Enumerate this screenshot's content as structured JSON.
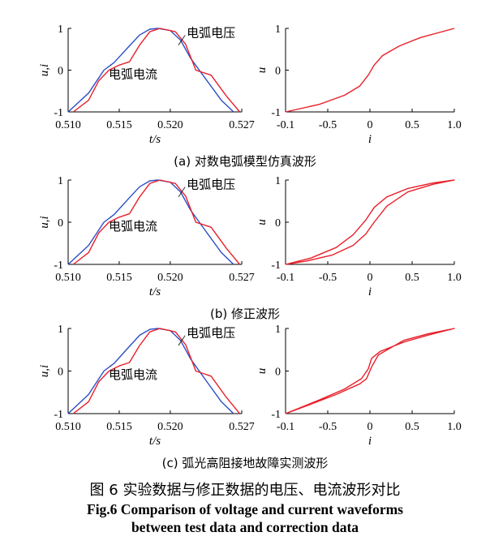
{
  "figure": {
    "caption_cn": "图 6   实验数据与修正数据的电压、电流波形对比",
    "caption_en_line1": "Fig.6    Comparison of voltage and current waveforms",
    "caption_en_line2": "between test data and correction data"
  },
  "colors": {
    "voltage": "#2b4fc7",
    "current": "#e8202a",
    "axis": "#000000"
  },
  "chart_data": [
    {
      "type": "line",
      "panel": "time",
      "row": 0,
      "ylabel": "u,i",
      "xlabel": "t/s",
      "xlim": [
        0.51,
        0.527
      ],
      "ylim": [
        -1,
        1
      ],
      "xticks": [
        "0.510",
        "0.515",
        "0.520",
        "0.527"
      ],
      "yticks": [
        "1",
        "0",
        "-1"
      ],
      "series": [
        {
          "name": "电弧电压",
          "x": [
            0.51,
            0.512,
            0.5135,
            0.5145,
            0.516,
            0.517,
            0.518,
            0.5188,
            0.52,
            0.521,
            0.522,
            0.5235,
            0.525,
            0.5262
          ],
          "y": [
            -1.0,
            -0.55,
            0.0,
            0.18,
            0.58,
            0.84,
            0.98,
            1.0,
            0.95,
            0.72,
            0.28,
            -0.22,
            -0.72,
            -1.0
          ]
        },
        {
          "name": "电弧电流",
          "x": [
            0.5105,
            0.512,
            0.513,
            0.514,
            0.515,
            0.516,
            0.517,
            0.518,
            0.519,
            0.5205,
            0.5215,
            0.5225,
            0.524,
            0.5255,
            0.5268
          ],
          "y": [
            -1.0,
            -0.72,
            -0.25,
            0.0,
            0.12,
            0.2,
            0.6,
            0.92,
            1.0,
            0.92,
            0.62,
            0.0,
            -0.12,
            -0.62,
            -1.0
          ]
        }
      ],
      "annotations": [
        "电弧电压",
        "电弧电流"
      ],
      "subcaption": "(a) 对数电弧模型仿真波形"
    },
    {
      "type": "line",
      "panel": "iu",
      "row": 0,
      "ylabel": "u",
      "xlabel": "i",
      "xlim": [
        -1.0,
        1.0
      ],
      "ylim": [
        -1,
        1
      ],
      "xticks": [
        "-0.1",
        "-0.5",
        "0",
        "0.5",
        "1.0"
      ],
      "yticks": [
        "1",
        "0",
        "-1"
      ],
      "series": [
        {
          "x": [
            -1.0,
            -0.6,
            -0.3,
            -0.12,
            -0.02,
            0.05,
            0.15,
            0.35,
            0.6,
            1.0
          ],
          "y": [
            -1.0,
            -0.82,
            -0.6,
            -0.38,
            -0.12,
            0.12,
            0.35,
            0.58,
            0.78,
            1.0
          ]
        }
      ]
    },
    {
      "type": "line",
      "panel": "time",
      "row": 1,
      "ylabel": "u,i",
      "xlabel": "t/s",
      "xlim": [
        0.51,
        0.527
      ],
      "ylim": [
        -1,
        1
      ],
      "xticks": [
        "0.510",
        "0.515",
        "0.520",
        "0.527"
      ],
      "yticks": [
        "1",
        "0",
        "-1"
      ],
      "series": [
        {
          "name": "电弧电压",
          "x": [
            0.51,
            0.512,
            0.5135,
            0.5145,
            0.516,
            0.517,
            0.518,
            0.5188,
            0.52,
            0.521,
            0.522,
            0.5235,
            0.525,
            0.5262
          ],
          "y": [
            -1.0,
            -0.55,
            0.0,
            0.18,
            0.58,
            0.84,
            0.98,
            1.0,
            0.95,
            0.72,
            0.28,
            -0.22,
            -0.72,
            -1.0
          ]
        },
        {
          "name": "电弧电流",
          "x": [
            0.5105,
            0.512,
            0.513,
            0.514,
            0.515,
            0.516,
            0.517,
            0.518,
            0.519,
            0.5205,
            0.5215,
            0.5225,
            0.524,
            0.5255,
            0.5268
          ],
          "y": [
            -1.0,
            -0.72,
            -0.25,
            0.0,
            0.12,
            0.2,
            0.6,
            0.92,
            1.0,
            0.92,
            0.62,
            0.0,
            -0.12,
            -0.62,
            -1.0
          ]
        }
      ],
      "annotations": [
        "电弧电压",
        "电弧电流"
      ],
      "subcaption": "(b) 修正波形"
    },
    {
      "type": "line",
      "panel": "iu",
      "row": 1,
      "ylabel": "u",
      "xlabel": "i",
      "xlim": [
        -1.0,
        1.0
      ],
      "ylim": [
        -1,
        1
      ],
      "xticks": [
        "-0.1",
        "-0.5",
        "0",
        "0.5",
        "1.0"
      ],
      "yticks": [
        "1",
        "0",
        "-1"
      ],
      "series": [
        {
          "x": [
            -1.0,
            -0.7,
            -0.4,
            -0.2,
            -0.05,
            0.05,
            0.2,
            0.45,
            0.75,
            1.0,
            0.75,
            0.45,
            0.2,
            0.05,
            -0.05,
            -0.2,
            -0.45,
            -0.75,
            -1.0
          ],
          "y": [
            -1.0,
            -0.85,
            -0.6,
            -0.3,
            0.05,
            0.35,
            0.6,
            0.8,
            0.93,
            1.0,
            0.9,
            0.72,
            0.38,
            0.0,
            -0.28,
            -0.55,
            -0.78,
            -0.92,
            -1.0
          ]
        }
      ]
    },
    {
      "type": "line",
      "panel": "time",
      "row": 2,
      "ylabel": "u,i",
      "xlabel": "t/s",
      "xlim": [
        0.51,
        0.527
      ],
      "ylim": [
        -1,
        1
      ],
      "xticks": [
        "0.510",
        "0.515",
        "0.520",
        "0.527"
      ],
      "yticks": [
        "1",
        "0",
        "-1"
      ],
      "series": [
        {
          "name": "电弧电压",
          "x": [
            0.51,
            0.512,
            0.5135,
            0.5145,
            0.516,
            0.517,
            0.518,
            0.5188,
            0.52,
            0.521,
            0.522,
            0.5235,
            0.525,
            0.5262
          ],
          "y": [
            -1.0,
            -0.55,
            0.0,
            0.18,
            0.58,
            0.84,
            0.98,
            1.0,
            0.95,
            0.72,
            0.28,
            -0.22,
            -0.72,
            -1.0
          ]
        },
        {
          "name": "电弧电流",
          "x": [
            0.5105,
            0.512,
            0.513,
            0.514,
            0.515,
            0.516,
            0.517,
            0.518,
            0.519,
            0.5205,
            0.5215,
            0.5225,
            0.524,
            0.5255,
            0.5268
          ],
          "y": [
            -1.0,
            -0.72,
            -0.25,
            0.0,
            0.12,
            0.2,
            0.6,
            0.92,
            1.0,
            0.92,
            0.62,
            0.0,
            -0.12,
            -0.62,
            -1.0
          ]
        }
      ],
      "annotations": [
        "电弧电压",
        "电弧电流"
      ],
      "subcaption": "(c) 弧光高阻接地故障实测波形"
    },
    {
      "type": "line",
      "panel": "iu",
      "row": 2,
      "ylabel": "u",
      "xlabel": "i",
      "xlim": [
        -1.0,
        1.0
      ],
      "ylim": [
        -1,
        1
      ],
      "xticks": [
        "-0.1",
        "-0.5",
        "0",
        "0.5",
        "1.0"
      ],
      "yticks": [
        "1",
        "0",
        "-1"
      ],
      "series": [
        {
          "x": [
            -1.0,
            -0.6,
            -0.3,
            -0.1,
            -0.02,
            0.02,
            0.12,
            0.4,
            0.7,
            1.0,
            0.7,
            0.4,
            0.1,
            0.02,
            -0.04,
            -0.12,
            -0.4,
            -0.7,
            -1.0
          ],
          "y": [
            -1.0,
            -0.68,
            -0.42,
            -0.18,
            0.05,
            0.3,
            0.46,
            0.68,
            0.85,
            1.0,
            0.88,
            0.72,
            0.38,
            0.1,
            -0.18,
            -0.3,
            -0.55,
            -0.78,
            -1.0
          ]
        }
      ]
    }
  ]
}
